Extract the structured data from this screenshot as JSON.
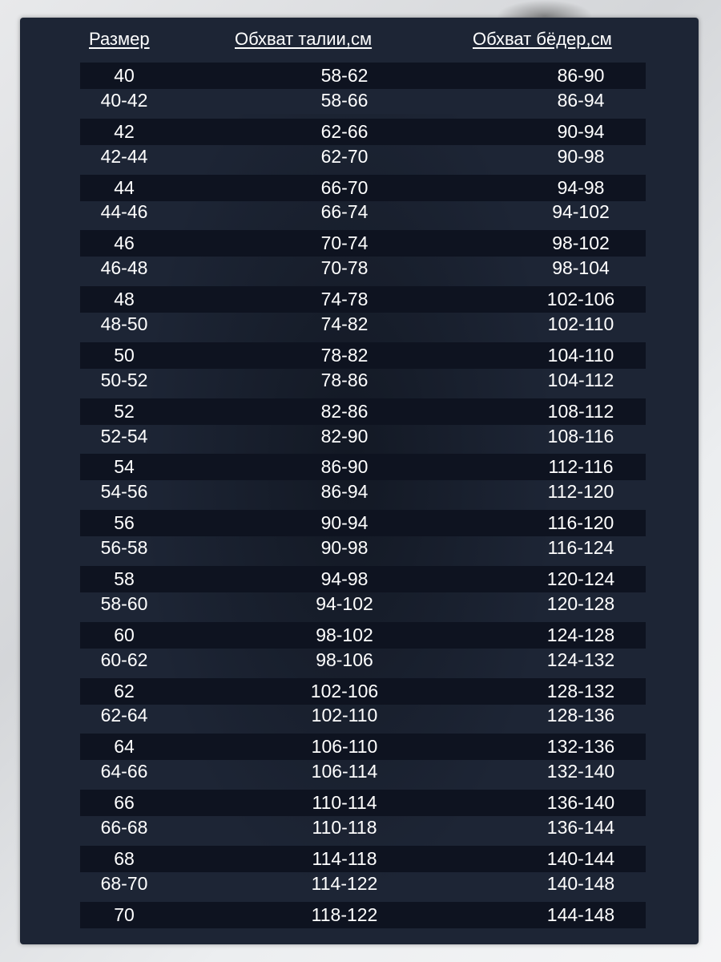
{
  "header": {
    "size": "Размер",
    "waist": "Обхват талии,см",
    "hips": "Обхват бёдер,см"
  },
  "rows": [
    {
      "size": "40",
      "waist": "58-62",
      "hips": "86-90"
    },
    {
      "size": "40-42",
      "waist": "58-66",
      "hips": "86-94"
    },
    {
      "size": "42",
      "waist": "62-66",
      "hips": "90-94"
    },
    {
      "size": "42-44",
      "waist": "62-70",
      "hips": "90-98"
    },
    {
      "size": "44",
      "waist": "66-70",
      "hips": "94-98"
    },
    {
      "size": "44-46",
      "waist": "66-74",
      "hips": "94-102"
    },
    {
      "size": "46",
      "waist": "70-74",
      "hips": "98-102"
    },
    {
      "size": "46-48",
      "waist": "70-78",
      "hips": "98-104"
    },
    {
      "size": "48",
      "waist": "74-78",
      "hips": "102-106"
    },
    {
      "size": "48-50",
      "waist": "74-82",
      "hips": "102-110"
    },
    {
      "size": "50",
      "waist": "78-82",
      "hips": "104-110"
    },
    {
      "size": "50-52",
      "waist": "78-86",
      "hips": "104-112"
    },
    {
      "size": "52",
      "waist": "82-86",
      "hips": "108-112"
    },
    {
      "size": "52-54",
      "waist": "82-90",
      "hips": "108-116"
    },
    {
      "size": "54",
      "waist": "86-90",
      "hips": "112-116"
    },
    {
      "size": "54-56",
      "waist": "86-94",
      "hips": "112-120"
    },
    {
      "size": "56",
      "waist": "90-94",
      "hips": "116-120"
    },
    {
      "size": "56-58",
      "waist": "90-98",
      "hips": "116-124"
    },
    {
      "size": "58",
      "waist": "94-98",
      "hips": "120-124"
    },
    {
      "size": "58-60",
      "waist": "94-102",
      "hips": "120-128"
    },
    {
      "size": "60",
      "waist": "98-102",
      "hips": "124-128"
    },
    {
      "size": "60-62",
      "waist": "98-106",
      "hips": "124-132"
    },
    {
      "size": "62",
      "waist": "102-106",
      "hips": "128-132"
    },
    {
      "size": "62-64",
      "waist": "102-110",
      "hips": "128-136"
    },
    {
      "size": "64",
      "waist": "106-110",
      "hips": "132-136"
    },
    {
      "size": "64-66",
      "waist": "106-114",
      "hips": "132-140"
    },
    {
      "size": "66",
      "waist": "110-114",
      "hips": "136-140"
    },
    {
      "size": "66-68",
      "waist": "110-118",
      "hips": "136-144"
    },
    {
      "size": "68",
      "waist": "114-118",
      "hips": "140-144"
    },
    {
      "size": "68-70",
      "waist": "114-122",
      "hips": "140-148"
    },
    {
      "size": "70",
      "waist": "118-122",
      "hips": "144-148"
    }
  ],
  "colors": {
    "panel": "#1d2535",
    "stripe": "#0e1320",
    "text": "#ffffff"
  }
}
